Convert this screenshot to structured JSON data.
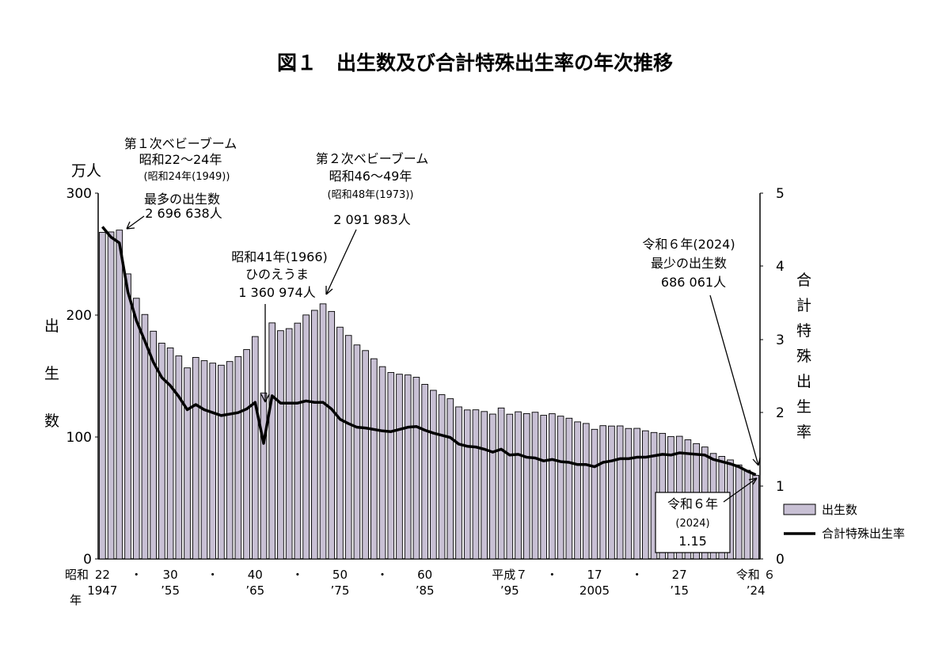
{
  "title": "図１　出生数及び合計特殊出生率の年次推移",
  "axes": {
    "left_unit": "万人",
    "left_label": [
      "出",
      "生",
      "数"
    ],
    "left_ticks": [
      "0",
      "100",
      "200",
      "300"
    ],
    "right_label": [
      "合",
      "計",
      "特",
      "殊",
      "出",
      "生",
      "率"
    ],
    "right_ticks": [
      "0",
      "1",
      "2",
      "3",
      "4",
      "5"
    ],
    "x_label_era": "昭和",
    "x_label_nen": "年",
    "x_ticks_top": [
      {
        "year": 1947,
        "label": "22"
      },
      {
        "year": 1951,
        "label": "・"
      },
      {
        "year": 1955,
        "label": "30"
      },
      {
        "year": 1960,
        "label": "・"
      },
      {
        "year": 1965,
        "label": "40"
      },
      {
        "year": 1970,
        "label": "・"
      },
      {
        "year": 1975,
        "label": "50"
      },
      {
        "year": 1980,
        "label": "・"
      },
      {
        "year": 1985,
        "label": "60"
      },
      {
        "year": 1995,
        "label": "平成７"
      },
      {
        "year": 2000,
        "label": "・"
      },
      {
        "year": 2005,
        "label": "17"
      },
      {
        "year": 2010,
        "label": "・"
      },
      {
        "year": 2015,
        "label": "27"
      },
      {
        "year": 2024,
        "label": "令和 ６"
      }
    ],
    "x_ticks_bottom": [
      {
        "year": 1947,
        "label": "1947"
      },
      {
        "year": 1955,
        "label": "’55"
      },
      {
        "year": 1965,
        "label": "’65"
      },
      {
        "year": 1975,
        "label": "’75"
      },
      {
        "year": 1985,
        "label": "’85"
      },
      {
        "year": 1995,
        "label": "’95"
      },
      {
        "year": 2005,
        "label": "2005"
      },
      {
        "year": 2015,
        "label": "’15"
      },
      {
        "year": 2024,
        "label": "’24"
      }
    ]
  },
  "annotations": {
    "boom1": {
      "l1": "第１次ベビーブーム",
      "l2": "昭和22～24年",
      "l3": "(昭和24年(1949))",
      "l4": "最多の出生数",
      "l5": "2 696 638人"
    },
    "hinoe": {
      "l1": "昭和41年(1966)",
      "l2": "ひのえうま",
      "l3": "1 360 974人"
    },
    "boom2": {
      "l1": "第２次ベビーブーム",
      "l2": "昭和46～49年",
      "l3": "(昭和48年(1973))",
      "l4": "2 091 983人"
    },
    "min": {
      "l1": "令和６年(2024)",
      "l2": "最少の出生数",
      "l3": "686 061人"
    },
    "tfr_box": {
      "l1": "令和６年",
      "l2": "(2024)",
      "l3": "1.15"
    }
  },
  "legend": {
    "bar_label": "出生数",
    "line_label": "合計特殊出生率"
  },
  "chart_data": {
    "type": "bar",
    "x": [
      1947,
      1948,
      1949,
      1950,
      1951,
      1952,
      1953,
      1954,
      1955,
      1956,
      1957,
      1958,
      1959,
      1960,
      1961,
      1962,
      1963,
      1964,
      1965,
      1966,
      1967,
      1968,
      1969,
      1970,
      1971,
      1972,
      1973,
      1974,
      1975,
      1976,
      1977,
      1978,
      1979,
      1980,
      1981,
      1982,
      1983,
      1984,
      1985,
      1986,
      1987,
      1988,
      1989,
      1990,
      1991,
      1992,
      1993,
      1994,
      1995,
      1996,
      1997,
      1998,
      1999,
      2000,
      2001,
      2002,
      2003,
      2004,
      2005,
      2006,
      2007,
      2008,
      2009,
      2010,
      2011,
      2012,
      2013,
      2014,
      2015,
      2016,
      2017,
      2018,
      2019,
      2020,
      2021,
      2022,
      2023,
      2024
    ],
    "series": [
      {
        "name": "出生数",
        "axis": "left",
        "values": [
          267.9,
          268.2,
          269.7,
          233.8,
          213.8,
          200.5,
          186.8,
          177.0,
          173.1,
          166.5,
          156.7,
          165.3,
          162.6,
          160.6,
          158.9,
          161.9,
          166.0,
          171.7,
          182.4,
          136.1,
          193.6,
          187.2,
          188.9,
          193.4,
          200.1,
          203.9,
          209.2,
          203.0,
          190.1,
          183.3,
          175.5,
          170.9,
          164.2,
          157.7,
          152.9,
          151.5,
          150.9,
          149.0,
          143.2,
          138.3,
          134.7,
          131.4,
          124.7,
          122.2,
          122.3,
          120.9,
          118.8,
          123.8,
          118.7,
          120.7,
          119.2,
          120.3,
          117.8,
          119.1,
          117.1,
          115.4,
          112.4,
          111.1,
          106.3,
          109.3,
          109.0,
          109.1,
          107.0,
          107.1,
          105.1,
          103.7,
          103.0,
          100.4,
          100.6,
          97.7,
          94.6,
          91.8,
          86.5,
          84.1,
          81.2,
          77.1,
          72.7,
          68.6
        ]
      },
      {
        "name": "合計特殊出生率",
        "axis": "right",
        "values": [
          4.54,
          4.4,
          4.32,
          3.65,
          3.26,
          2.98,
          2.69,
          2.48,
          2.37,
          2.22,
          2.04,
          2.11,
          2.04,
          2.0,
          1.96,
          1.98,
          2.0,
          2.05,
          2.14,
          1.58,
          2.23,
          2.13,
          2.13,
          2.13,
          2.16,
          2.14,
          2.14,
          2.05,
          1.91,
          1.85,
          1.8,
          1.79,
          1.77,
          1.75,
          1.74,
          1.77,
          1.8,
          1.81,
          1.76,
          1.72,
          1.69,
          1.66,
          1.57,
          1.54,
          1.53,
          1.5,
          1.46,
          1.5,
          1.42,
          1.43,
          1.39,
          1.38,
          1.34,
          1.36,
          1.33,
          1.32,
          1.29,
          1.29,
          1.26,
          1.32,
          1.34,
          1.37,
          1.37,
          1.39,
          1.39,
          1.41,
          1.43,
          1.42,
          1.45,
          1.44,
          1.43,
          1.42,
          1.36,
          1.33,
          1.3,
          1.26,
          1.2,
          1.15
        ]
      }
    ],
    "ylim_left": [
      0,
      300
    ],
    "ylim_right": [
      0,
      5
    ],
    "legend_position": "right"
  }
}
